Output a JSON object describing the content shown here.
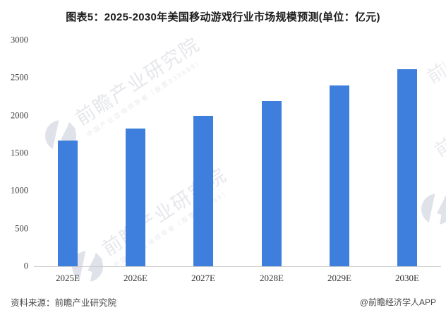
{
  "title": "图表5：2025-2030年美国移动游戏行业市场规模预测(单位：亿元)",
  "chart_data": {
    "type": "bar",
    "title": "图表5：2025-2030年美国移动游戏行业市场规模预测(单位：亿元)",
    "unit": "亿元",
    "categories": [
      "2025E",
      "2026E",
      "2027E",
      "2028E",
      "2029E",
      "2030E"
    ],
    "values": [
      1670,
      1830,
      2000,
      2190,
      2400,
      2620
    ],
    "xlabel": "",
    "ylabel": "",
    "ylim": [
      0,
      3000
    ],
    "yticks": [
      0,
      500,
      1000,
      1500,
      2000,
      2500,
      3000
    ],
    "grid": false,
    "legend": "none",
    "bar_color": "#3e7fdd"
  },
  "footer": {
    "source": "资料来源：前瞻产业研究院",
    "credit": "@前瞻经济学人APP"
  },
  "watermark": {
    "logo_icon": "qianzhan-swoosh-icon",
    "text_large": "前瞻产业研究院",
    "text_small": "中国产业咨询领导者（股票839599）",
    "color": "#e8e9ec"
  }
}
